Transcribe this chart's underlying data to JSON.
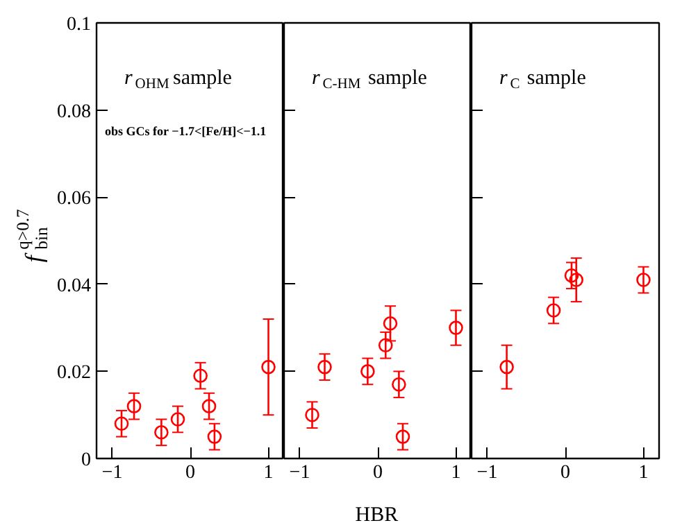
{
  "chart_data": [
    {
      "type": "scatter",
      "title": "r$_{OHM}$ sample",
      "ylabel": "f$^{q>0.7}$$_{bin}$",
      "annotations": [
        "obs GCs for −1.7<[Fe/H]<−1.1"
      ],
      "marker": "circle",
      "color": "#ff0000",
      "x": [
        -0.88,
        -0.72,
        -0.37,
        -0.16,
        0.13,
        0.24,
        0.31,
        1.0
      ],
      "values": [
        0.008,
        0.012,
        0.006,
        0.009,
        0.019,
        0.012,
        0.005,
        0.021
      ],
      "errors": [
        0.003,
        0.003,
        0.003,
        0.003,
        0.003,
        0.003,
        0.003,
        0.011
      ],
      "xlim": [
        -1.2,
        1.2
      ],
      "xticks": [
        -1,
        0,
        1
      ],
      "ylim": [
        0,
        0.1
      ],
      "yticks": [
        0,
        0.02,
        0.04,
        0.06,
        0.08,
        0.1
      ],
      "grid": false,
      "legend": false
    },
    {
      "type": "scatter",
      "title": "r$_{C-HM}$ sample",
      "xlabel": "HBR",
      "marker": "circle",
      "color": "#ff0000",
      "x": [
        -0.84,
        -0.68,
        -0.13,
        0.1,
        0.16,
        0.27,
        0.32,
        1.0
      ],
      "values": [
        0.01,
        0.021,
        0.02,
        0.026,
        0.031,
        0.017,
        0.005,
        0.03
      ],
      "errors": [
        0.003,
        0.003,
        0.003,
        0.003,
        0.004,
        0.003,
        0.003,
        0.004
      ],
      "xlim": [
        -1.2,
        1.2
      ],
      "xticks": [
        -1,
        0,
        1
      ],
      "ylim": [
        0,
        0.1
      ],
      "yticks": [
        0,
        0.02,
        0.04,
        0.06,
        0.08,
        0.1
      ],
      "tick_labels": "x",
      "grid": false,
      "legend": false
    },
    {
      "type": "scatter",
      "title": "r$_{C}$ sample",
      "marker": "circle",
      "color": "#ff0000",
      "x": [
        -0.75,
        -0.15,
        0.08,
        0.14,
        1.0
      ],
      "values": [
        0.021,
        0.034,
        0.042,
        0.041,
        0.041
      ],
      "errors": [
        0.005,
        0.003,
        0.003,
        0.005,
        0.003
      ],
      "xlim": [
        -1.2,
        1.2
      ],
      "xticks": [
        -1,
        0,
        1
      ],
      "ylim": [
        0,
        0.1
      ],
      "yticks": [
        0,
        0.02,
        0.04,
        0.06,
        0.08,
        0.1
      ],
      "tick_labels": "x",
      "grid": false,
      "legend": false
    }
  ]
}
